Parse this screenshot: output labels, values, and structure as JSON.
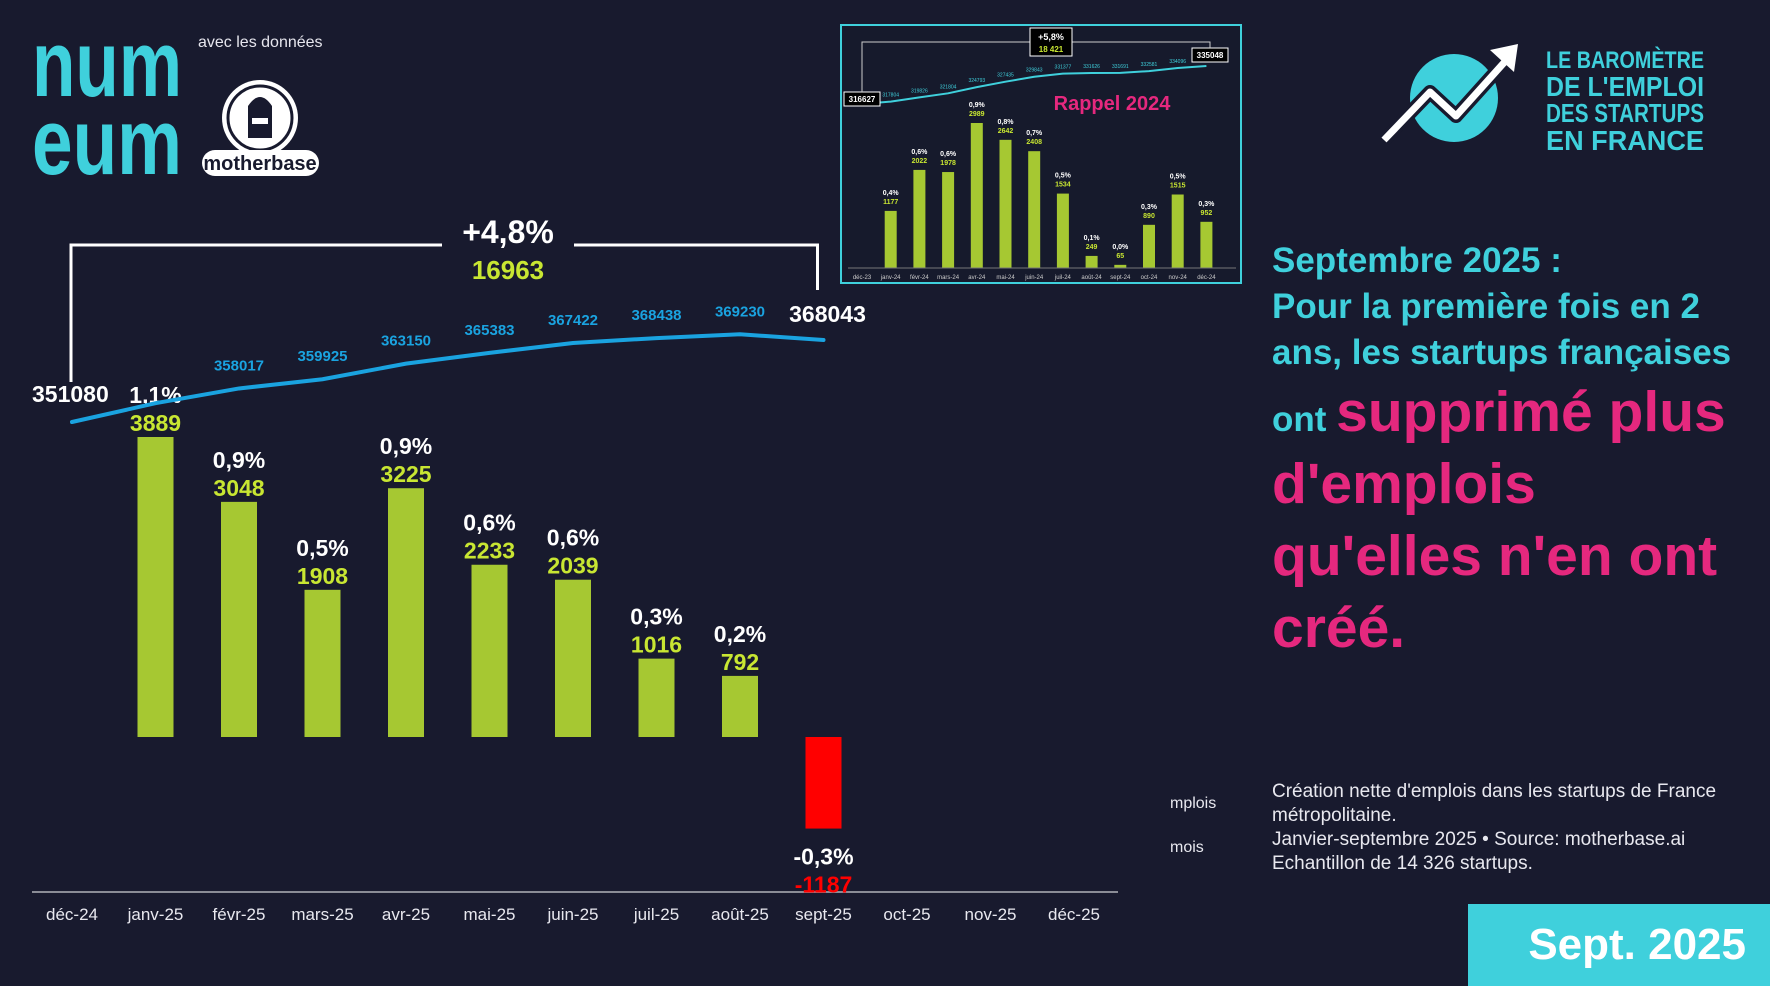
{
  "brand": {
    "numeum_line1": "num",
    "numeum_line2": "eum",
    "avec": "avec les données",
    "motherbase": "motherbase"
  },
  "barometre": {
    "line1": "LE BAROMÈTRE",
    "line2": "DE L'EMPLOI",
    "line3": "DES STARTUPS",
    "line4": "EN FRANCE"
  },
  "headline": {
    "part1": "Septembre 2025 :",
    "part2": "Pour la première fois en 2 ans, les startups françaises ont",
    "highlight": "supprimé plus d'emplois qu'elles n'en ont créé."
  },
  "notes": {
    "line1": "Création nette d'emplois dans les startups de France métropolitaine.",
    "line2": "Janvier-septembre 2025 • Source: motherbase.ai",
    "line3": "Echantillon de 14 326 startups."
  },
  "legend_fragments": [
    "mplois",
    "mois"
  ],
  "date_label": "Sept. 2025",
  "colors": {
    "bar": "#a6c832",
    "negative": "#ff0000",
    "line": "#1aa3e0",
    "teal": "#3fd0dc",
    "pink": "#e5287e",
    "green_text": "#c8e632"
  },
  "chart_data": [
    {
      "type": "bar",
      "categories": [
        "déc-24",
        "janv-25",
        "févr-25",
        "mars-25",
        "avr-25",
        "mai-25",
        "juin-25",
        "juil-25",
        "août-25",
        "sept-25",
        "oct-25",
        "nov-25",
        "déc-25"
      ],
      "series": [
        {
          "values": [
            null,
            3889,
            3048,
            1908,
            3225,
            2233,
            2039,
            1016,
            792,
            -1187,
            null,
            null,
            null
          ]
        },
        {
          "values": [
            351080,
            354969,
            358017,
            359925,
            363150,
            365383,
            367422,
            368438,
            369230,
            368043,
            null,
            null,
            null
          ]
        }
      ],
      "pct_labels": [
        "",
        "1,1%",
        "0,9%",
        "0,5%",
        "0,9%",
        "0,6%",
        "0,6%",
        "0,3%",
        "0,2%",
        "-0,3%",
        "",
        "",
        ""
      ],
      "total_labels": [
        "351080",
        "",
        "358017",
        "359925",
        "363150",
        "365383",
        "367422",
        "368438",
        "369230",
        "368043",
        "",
        "",
        ""
      ],
      "bracket": {
        "pct": "+4,8%",
        "value": "16963"
      }
    },
    {
      "type": "bar",
      "title": "Rappel 2024",
      "categories": [
        "déc-23",
        "janv-24",
        "févr-24",
        "mars-24",
        "avr-24",
        "mai-24",
        "juin-24",
        "juil-24",
        "août-24",
        "sept-24",
        "oct-24",
        "nov-24",
        "déc-24"
      ],
      "series": [
        {
          "values": [
            null,
            1177,
            2022,
            1978,
            2989,
            2642,
            2408,
            1534,
            249,
            65,
            890,
            1515,
            952
          ]
        },
        {
          "values": [
            316627,
            317804,
            319826,
            321804,
            324793,
            327435,
            329843,
            331377,
            331626,
            331691,
            332581,
            334096,
            335048
          ]
        }
      ],
      "pct_labels": [
        "",
        "0,4%",
        "0,6%",
        "0,6%",
        "0,9%",
        "0,8%",
        "0,7%",
        "0,5%",
        "0,1%",
        "0,0%",
        "0,3%",
        "0,5%",
        "0,3%"
      ],
      "total_labels": [
        "316627",
        "317804",
        "319826",
        "321804",
        "324793",
        "327435",
        "329843",
        "331377",
        "331626",
        "331691",
        "332581",
        "334096",
        "335048"
      ],
      "bracket": {
        "pct": "+5,8%",
        "value": "18 421"
      }
    }
  ]
}
